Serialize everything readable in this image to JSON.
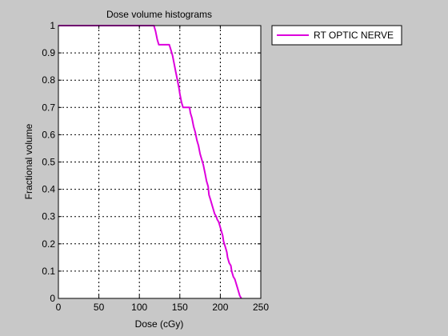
{
  "chart_data": {
    "type": "line",
    "title": "Dose volume histograms",
    "xlabel": "Dose (cGy)",
    "ylabel": "Fractional volume",
    "xlim": [
      0,
      250
    ],
    "ylim": [
      0,
      1
    ],
    "x_ticks": [
      "0",
      "50",
      "100",
      "150",
      "200",
      "250"
    ],
    "y_ticks": [
      "0",
      "0.1",
      "0.2",
      "0.3",
      "0.4",
      "0.5",
      "0.6",
      "0.7",
      "0.8",
      "0.9",
      "1"
    ],
    "grid": true,
    "legend_position": "outside-top-right",
    "series": [
      {
        "name": "RT OPTIC NERVE",
        "color": "#dd00dd",
        "x": [
          0,
          118,
          120,
          122,
          124,
          137,
          139,
          141,
          143,
          145,
          147,
          149,
          150,
          152,
          154,
          155,
          162,
          163,
          165,
          167,
          169,
          171,
          173,
          175,
          177,
          179,
          181,
          183,
          185,
          186,
          188,
          189,
          191,
          193,
          195,
          196,
          198,
          199,
          201,
          203,
          204,
          206,
          208,
          209,
          211,
          213,
          214,
          216,
          218,
          219,
          221,
          222,
          224,
          226
        ],
        "y": [
          1,
          1,
          0.98,
          0.95,
          0.93,
          0.93,
          0.91,
          0.89,
          0.86,
          0.83,
          0.8,
          0.77,
          0.75,
          0.72,
          0.7,
          0.7,
          0.7,
          0.68,
          0.66,
          0.63,
          0.61,
          0.58,
          0.56,
          0.53,
          0.51,
          0.49,
          0.46,
          0.43,
          0.41,
          0.38,
          0.36,
          0.35,
          0.33,
          0.31,
          0.3,
          0.29,
          0.28,
          0.27,
          0.25,
          0.23,
          0.21,
          0.19,
          0.17,
          0.15,
          0.13,
          0.12,
          0.1,
          0.08,
          0.07,
          0.06,
          0.04,
          0.03,
          0.01,
          0
        ]
      }
    ]
  }
}
